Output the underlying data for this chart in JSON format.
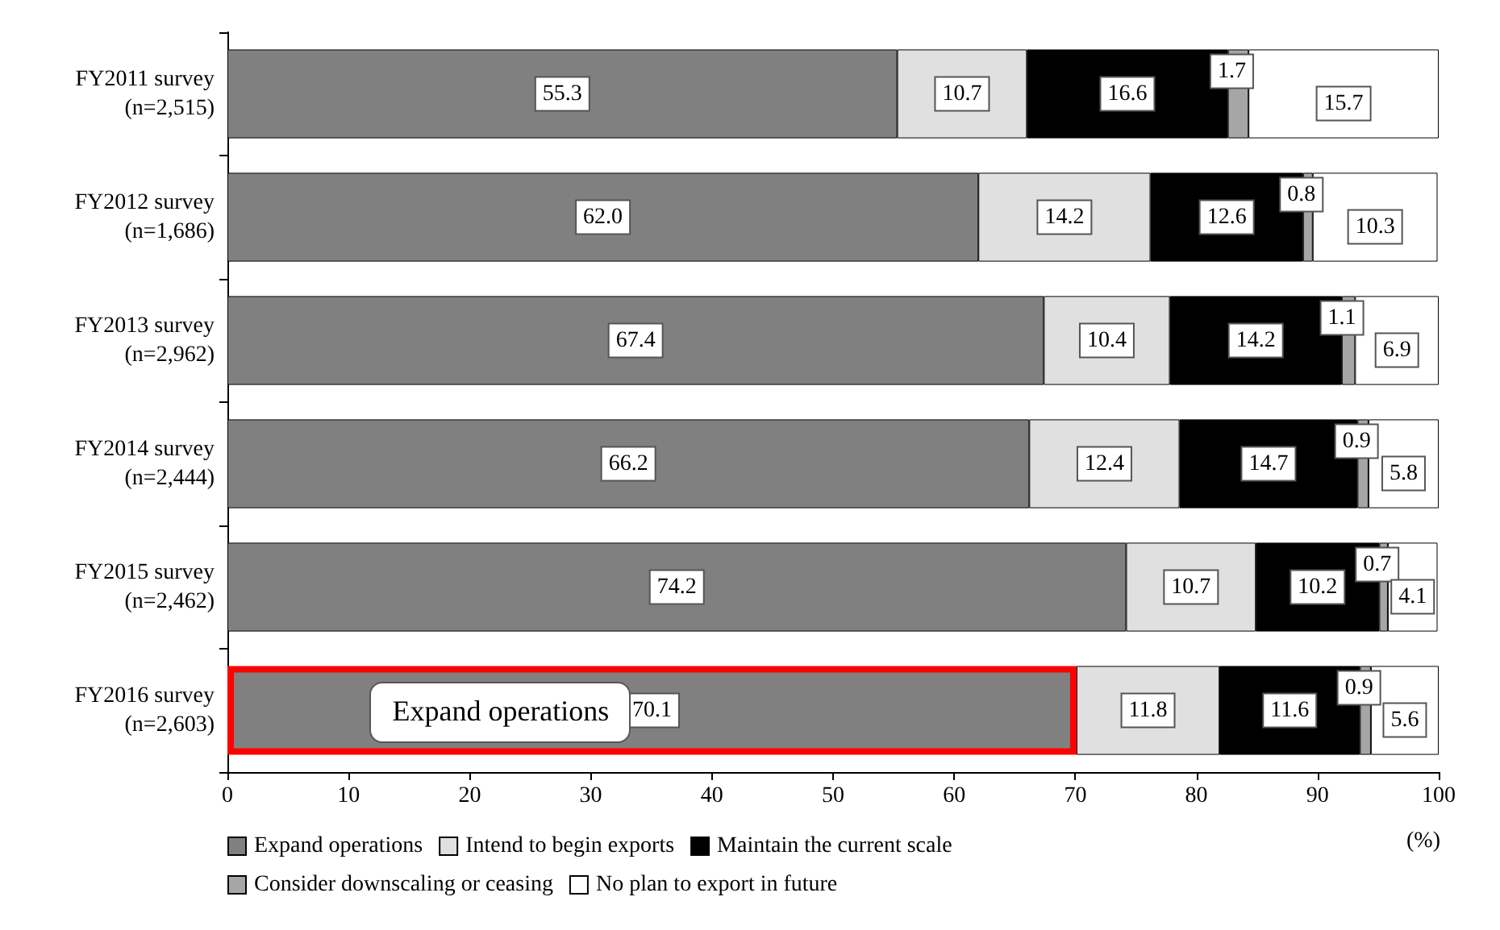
{
  "chart_data": {
    "type": "bar",
    "orientation": "horizontal",
    "stacked": true,
    "data_labels": true,
    "legend": "bottom",
    "xlabel": "(%)",
    "categories": [
      "FY2011 survey\n(n=2,515)",
      "FY2012 survey\n(n=1,686)",
      "FY2013 survey\n(n=2,962)",
      "FY2014 survey\n(n=2,444)",
      "FY2015 survey\n(n=2,462)",
      "FY2016 survey\n(n=2,603)"
    ],
    "xlim": [
      0,
      100
    ],
    "xticks": [
      0,
      10,
      20,
      30,
      40,
      50,
      60,
      70,
      80,
      90,
      100
    ],
    "series": [
      {
        "name": "Expand operations",
        "color": "#808080",
        "values": [
          55.3,
          62.0,
          67.4,
          66.2,
          74.2,
          70.1
        ],
        "value_labels": [
          "55.3",
          "62.0",
          "67.4",
          "66.2",
          "74.2",
          "70.1"
        ]
      },
      {
        "name": "Intend to begin exports",
        "color": "#e0e0e0",
        "values": [
          10.7,
          14.2,
          10.4,
          12.4,
          10.7,
          11.8
        ]
      },
      {
        "name": "Maintain the current scale",
        "color": "#000000",
        "values": [
          16.6,
          12.6,
          14.2,
          14.7,
          10.2,
          11.6
        ]
      },
      {
        "name": "Consider downscaling or ceasing",
        "color": "#a6a6a6",
        "values": [
          1.7,
          0.8,
          1.1,
          0.9,
          0.7,
          0.9
        ]
      },
      {
        "name": "No plan to export in future",
        "color": "#ffffff",
        "values": [
          15.7,
          10.3,
          6.9,
          5.8,
          4.1,
          5.6
        ]
      }
    ],
    "annotations": [
      "Expand operations"
    ]
  }
}
